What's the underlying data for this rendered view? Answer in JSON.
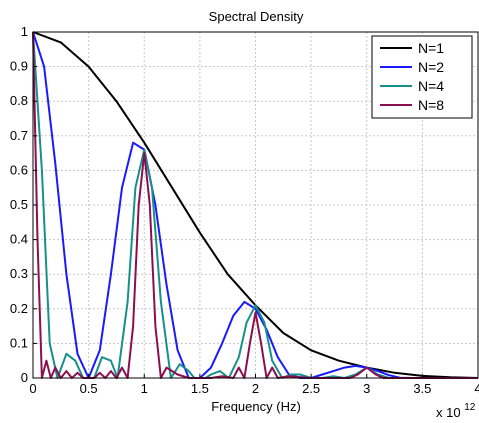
{
  "chart_data": {
    "type": "line",
    "title": "Spectral Density",
    "xlabel": "Frequency (Hz)",
    "ylabel": "",
    "x_multiplier_base": "x 10",
    "x_multiplier_exp": "12",
    "xlim": [
      0,
      4
    ],
    "ylim": [
      0,
      1
    ],
    "x_ticks": [
      "0",
      "0.5",
      "1",
      "1.5",
      "2",
      "2.5",
      "3",
      "3.5",
      "4"
    ],
    "y_ticks": [
      "0",
      "0.1",
      "0.2",
      "0.3",
      "0.4",
      "0.5",
      "0.6",
      "0.7",
      "0.8",
      "0.9",
      "1"
    ],
    "grid": true,
    "legend_position": "top-right",
    "series": [
      {
        "name": "N=1",
        "color": "#000000",
        "x": [
          0,
          0.25,
          0.5,
          0.75,
          1.0,
          1.25,
          1.5,
          1.75,
          2.0,
          2.25,
          2.5,
          2.75,
          3.0,
          3.25,
          3.5,
          3.75,
          4.0
        ],
        "y": [
          1.0,
          0.97,
          0.9,
          0.8,
          0.68,
          0.55,
          0.42,
          0.3,
          0.21,
          0.13,
          0.08,
          0.05,
          0.03,
          0.015,
          0.006,
          0.002,
          0.0
        ]
      },
      {
        "name": "N=2",
        "color": "#1a1aff",
        "x": [
          0,
          0.1,
          0.2,
          0.3,
          0.4,
          0.5,
          0.6,
          0.7,
          0.8,
          0.9,
          1.0,
          1.1,
          1.2,
          1.3,
          1.4,
          1.5,
          1.6,
          1.7,
          1.8,
          1.9,
          2.0,
          2.1,
          2.2,
          2.3,
          2.4,
          2.5,
          2.6,
          2.7,
          2.8,
          2.9,
          3.0,
          3.1,
          3.2,
          3.3,
          3.4,
          3.5,
          4.0
        ],
        "y": [
          1.0,
          0.9,
          0.62,
          0.3,
          0.07,
          0.0,
          0.08,
          0.3,
          0.55,
          0.68,
          0.66,
          0.5,
          0.27,
          0.08,
          0.0,
          0.0,
          0.03,
          0.1,
          0.18,
          0.22,
          0.2,
          0.14,
          0.06,
          0.01,
          0.0,
          0.0,
          0.01,
          0.02,
          0.03,
          0.035,
          0.03,
          0.02,
          0.008,
          0.001,
          0.0,
          0.0,
          0.0
        ]
      },
      {
        "name": "N=4",
        "color": "#178f8c",
        "x": [
          0,
          0.08,
          0.15,
          0.22,
          0.3,
          0.38,
          0.45,
          0.5,
          0.55,
          0.62,
          0.7,
          0.76,
          0.85,
          0.92,
          1.0,
          1.07,
          1.15,
          1.24,
          1.32,
          1.4,
          1.45,
          1.5,
          1.55,
          1.6,
          1.68,
          1.76,
          1.85,
          1.92,
          2.0,
          2.08,
          2.15,
          2.24,
          2.32,
          2.4,
          2.5,
          2.6,
          2.7,
          2.8,
          2.9,
          3.0,
          3.1,
          3.2,
          3.5,
          4.0
        ],
        "y": [
          1.0,
          0.6,
          0.1,
          0.0,
          0.07,
          0.05,
          0.0,
          0.0,
          0.0,
          0.06,
          0.05,
          0.0,
          0.22,
          0.55,
          0.66,
          0.55,
          0.22,
          0.0,
          0.04,
          0.02,
          0.0,
          0.0,
          0.0,
          0.01,
          0.02,
          0.0,
          0.06,
          0.16,
          0.21,
          0.16,
          0.05,
          0.0,
          0.01,
          0.01,
          0.0,
          0.0,
          0.005,
          0.0,
          0.01,
          0.03,
          0.01,
          0.0,
          0.0,
          0.0
        ]
      },
      {
        "name": "N=8",
        "color": "#8b0f4f",
        "x": [
          0,
          0.04,
          0.08,
          0.12,
          0.16,
          0.2,
          0.25,
          0.3,
          0.35,
          0.4,
          0.45,
          0.5,
          0.55,
          0.6,
          0.65,
          0.7,
          0.75,
          0.8,
          0.85,
          0.9,
          0.95,
          1.0,
          1.05,
          1.1,
          1.15,
          1.2,
          1.3,
          1.4,
          1.5,
          1.6,
          1.7,
          1.8,
          1.85,
          1.9,
          1.95,
          2.0,
          2.05,
          2.1,
          2.15,
          2.2,
          2.3,
          2.5,
          2.7,
          2.85,
          2.92,
          3.0,
          3.08,
          3.15,
          3.3,
          3.6,
          4.0
        ],
        "y": [
          1.0,
          0.4,
          0.0,
          0.05,
          0.0,
          0.03,
          0.0,
          0.02,
          0.0,
          0.015,
          0.0,
          0.0,
          0.0,
          0.015,
          0.0,
          0.02,
          0.0,
          0.03,
          0.0,
          0.15,
          0.5,
          0.65,
          0.5,
          0.15,
          0.0,
          0.03,
          0.01,
          0.0,
          0.0,
          0.0,
          0.005,
          0.0,
          0.03,
          0.0,
          0.1,
          0.19,
          0.1,
          0.0,
          0.03,
          0.0,
          0.005,
          0.0,
          0.0,
          0.0,
          0.01,
          0.03,
          0.01,
          0.0,
          0.0,
          0.0,
          0.0
        ]
      }
    ]
  }
}
